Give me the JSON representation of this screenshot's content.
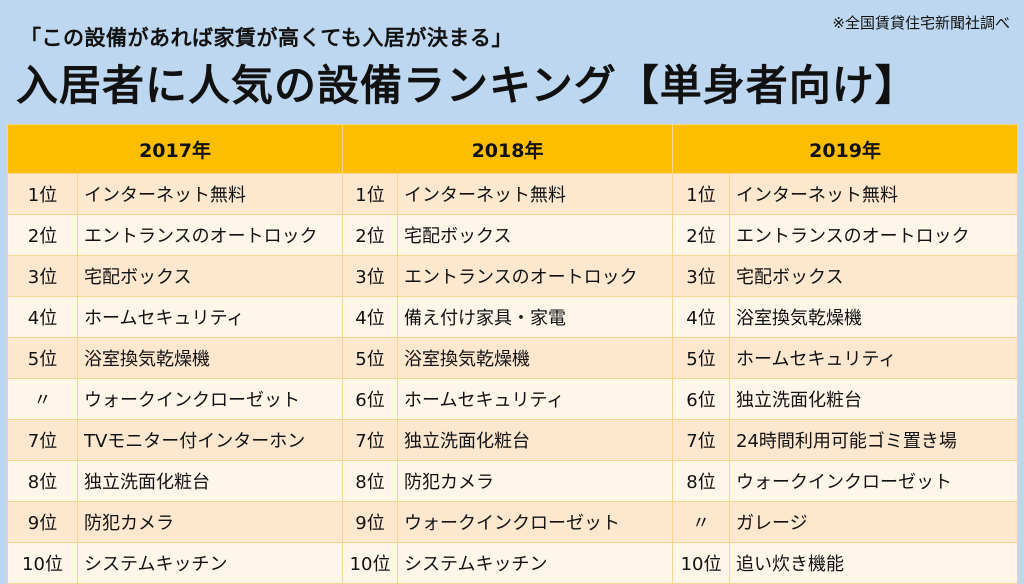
{
  "subtitle": "「この設備があれば家賃が高くても入居が決まる」",
  "source": "※全国賃貸住宅新聞社調べ",
  "title": "入居者に人気の設備ランキング【単身者向け】",
  "years": [
    "2017年",
    "2018年",
    "2019年"
  ],
  "rows": [
    {
      "y2017": {
        "rank": "1位",
        "item": "インターネット無料"
      },
      "y2018": {
        "rank": "1位",
        "item": "インターネット無料"
      },
      "y2019": {
        "rank": "1位",
        "item": "インターネット無料"
      }
    },
    {
      "y2017": {
        "rank": "2位",
        "item": "エントランスのオートロック"
      },
      "y2018": {
        "rank": "2位",
        "item": "宅配ボックス"
      },
      "y2019": {
        "rank": "2位",
        "item": "エントランスのオートロック"
      }
    },
    {
      "y2017": {
        "rank": "3位",
        "item": "宅配ボックス"
      },
      "y2018": {
        "rank": "3位",
        "item": "エントランスのオートロック"
      },
      "y2019": {
        "rank": "3位",
        "item": "宅配ボックス"
      }
    },
    {
      "y2017": {
        "rank": "4位",
        "item": "ホームセキュリティ"
      },
      "y2018": {
        "rank": "4位",
        "item": "備え付け家具・家電"
      },
      "y2019": {
        "rank": "4位",
        "item": "浴室換気乾燥機"
      }
    },
    {
      "y2017": {
        "rank": "5位",
        "item": "浴室換気乾燥機"
      },
      "y2018": {
        "rank": "5位",
        "item": "浴室換気乾燥機"
      },
      "y2019": {
        "rank": "5位",
        "item": "ホームセキュリティ"
      }
    },
    {
      "y2017": {
        "rank": "〃",
        "item": "ウォークインクローゼット"
      },
      "y2018": {
        "rank": "6位",
        "item": "ホームセキュリティ"
      },
      "y2019": {
        "rank": "6位",
        "item": "独立洗面化粧台"
      }
    },
    {
      "y2017": {
        "rank": "7位",
        "item": "TVモニター付インターホン"
      },
      "y2018": {
        "rank": "7位",
        "item": "独立洗面化粧台"
      },
      "y2019": {
        "rank": "7位",
        "item": "24時間利用可能ゴミ置き場"
      }
    },
    {
      "y2017": {
        "rank": "8位",
        "item": "独立洗面化粧台"
      },
      "y2018": {
        "rank": "8位",
        "item": "防犯カメラ"
      },
      "y2019": {
        "rank": "8位",
        "item": "ウォークインクローゼット"
      }
    },
    {
      "y2017": {
        "rank": "9位",
        "item": "防犯カメラ"
      },
      "y2018": {
        "rank": "9位",
        "item": "ウォークインクローゼット"
      },
      "y2019": {
        "rank": "〃",
        "item": "ガレージ"
      }
    },
    {
      "y2017": {
        "rank": "10位",
        "item": "システムキッチン"
      },
      "y2018": {
        "rank": "10位",
        "item": "システムキッチン"
      },
      "y2019": {
        "rank": "10位",
        "item": "追い炊き機能"
      }
    }
  ],
  "colors": {
    "background": "#bcd7ef",
    "header": "#fdbe00",
    "row_odd": "#fde7cf",
    "row_even": "#fff6ea"
  }
}
